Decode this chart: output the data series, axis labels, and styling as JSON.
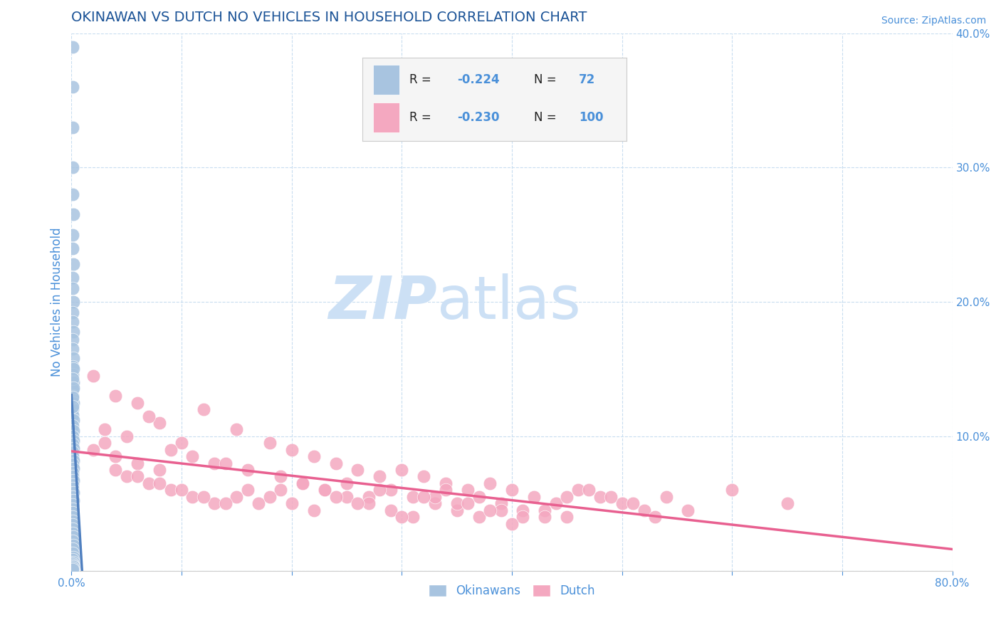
{
  "title": "OKINAWAN VS DUTCH NO VEHICLES IN HOUSEHOLD CORRELATION CHART",
  "source": "Source: ZipAtlas.com",
  "ylabel": "No Vehicles in Household",
  "xlim": [
    0.0,
    0.8
  ],
  "ylim": [
    0.0,
    0.4
  ],
  "xticks": [
    0.0,
    0.1,
    0.2,
    0.3,
    0.4,
    0.5,
    0.6,
    0.7,
    0.8
  ],
  "xticklabels": [
    "0.0%",
    "",
    "",
    "",
    "",
    "",
    "",
    "",
    "80.0%"
  ],
  "yticks": [
    0.0,
    0.1,
    0.2,
    0.3,
    0.4
  ],
  "yticklabels": [
    "",
    "10.0%",
    "20.0%",
    "30.0%",
    "40.0%"
  ],
  "okinawan_color": "#a8c4e0",
  "okinawan_edge_color": "#7090c0",
  "dutch_color": "#f4a8c0",
  "dutch_edge_color": "#e070a0",
  "okinawan_line_color": "#5080c0",
  "dutch_line_color": "#e86090",
  "title_color": "#1a5296",
  "axis_label_color": "#4a90d9",
  "tick_color": "#4a90d9",
  "watermark_zip": "ZIP",
  "watermark_atlas": "atlas",
  "watermark_color": "#cce0f5",
  "grid_color": "#c8ddf0",
  "background_color": "#ffffff",
  "legend_box_color": "#f5f5f5",
  "legend_border_color": "#cccccc",
  "okinawan_points_x": [
    0.001,
    0.001,
    0.001,
    0.001,
    0.001,
    0.002,
    0.001,
    0.001,
    0.002,
    0.001,
    0.001,
    0.002,
    0.001,
    0.001,
    0.002,
    0.001,
    0.001,
    0.002,
    0.001,
    0.001,
    0.002,
    0.001,
    0.001,
    0.002,
    0.001,
    0.001,
    0.002,
    0.001,
    0.002,
    0.001,
    0.002,
    0.001,
    0.002,
    0.001,
    0.001,
    0.002,
    0.001,
    0.002,
    0.001,
    0.001,
    0.002,
    0.001,
    0.001,
    0.002,
    0.001,
    0.002,
    0.001,
    0.001,
    0.001,
    0.001,
    0.001,
    0.001,
    0.001,
    0.001,
    0.002,
    0.001,
    0.002,
    0.001,
    0.001,
    0.002,
    0.001,
    0.002,
    0.001,
    0.001,
    0.002,
    0.001,
    0.001,
    0.002,
    0.001,
    0.002,
    0.001,
    0.001
  ],
  "okinawan_points_y": [
    0.39,
    0.36,
    0.33,
    0.3,
    0.28,
    0.265,
    0.25,
    0.24,
    0.228,
    0.218,
    0.21,
    0.2,
    0.192,
    0.185,
    0.178,
    0.172,
    0.165,
    0.158,
    0.152,
    0.146,
    0.14,
    0.135,
    0.13,
    0.125,
    0.12,
    0.116,
    0.112,
    0.108,
    0.104,
    0.1,
    0.097,
    0.094,
    0.091,
    0.088,
    0.085,
    0.082,
    0.079,
    0.076,
    0.073,
    0.07,
    0.067,
    0.064,
    0.061,
    0.058,
    0.055,
    0.052,
    0.049,
    0.046,
    0.043,
    0.04,
    0.037,
    0.034,
    0.031,
    0.028,
    0.025,
    0.022,
    0.019,
    0.016,
    0.013,
    0.01,
    0.008,
    0.006,
    0.005,
    0.004,
    0.003,
    0.002,
    0.001,
    0.15,
    0.143,
    0.136,
    0.129,
    0.122
  ],
  "dutch_points_x": [
    0.02,
    0.04,
    0.03,
    0.06,
    0.08,
    0.05,
    0.07,
    0.1,
    0.02,
    0.09,
    0.04,
    0.12,
    0.06,
    0.11,
    0.03,
    0.15,
    0.08,
    0.13,
    0.05,
    0.18,
    0.07,
    0.14,
    0.04,
    0.2,
    0.09,
    0.16,
    0.06,
    0.22,
    0.11,
    0.19,
    0.08,
    0.24,
    0.13,
    0.21,
    0.1,
    0.26,
    0.15,
    0.23,
    0.12,
    0.28,
    0.17,
    0.25,
    0.14,
    0.3,
    0.19,
    0.27,
    0.16,
    0.32,
    0.21,
    0.29,
    0.18,
    0.34,
    0.23,
    0.31,
    0.2,
    0.36,
    0.25,
    0.33,
    0.22,
    0.38,
    0.27,
    0.35,
    0.24,
    0.4,
    0.29,
    0.37,
    0.26,
    0.42,
    0.31,
    0.39,
    0.28,
    0.44,
    0.33,
    0.41,
    0.3,
    0.46,
    0.35,
    0.43,
    0.32,
    0.48,
    0.37,
    0.45,
    0.34,
    0.5,
    0.39,
    0.47,
    0.36,
    0.52,
    0.41,
    0.49,
    0.38,
    0.54,
    0.43,
    0.51,
    0.4,
    0.56,
    0.45,
    0.53,
    0.6,
    0.65
  ],
  "dutch_points_y": [
    0.145,
    0.13,
    0.105,
    0.125,
    0.11,
    0.1,
    0.115,
    0.095,
    0.09,
    0.09,
    0.085,
    0.12,
    0.08,
    0.085,
    0.095,
    0.105,
    0.075,
    0.08,
    0.07,
    0.095,
    0.065,
    0.08,
    0.075,
    0.09,
    0.06,
    0.075,
    0.07,
    0.085,
    0.055,
    0.07,
    0.065,
    0.08,
    0.05,
    0.065,
    0.06,
    0.075,
    0.055,
    0.06,
    0.055,
    0.07,
    0.05,
    0.065,
    0.05,
    0.075,
    0.06,
    0.055,
    0.06,
    0.07,
    0.065,
    0.06,
    0.055,
    0.065,
    0.06,
    0.055,
    0.05,
    0.06,
    0.055,
    0.05,
    0.045,
    0.065,
    0.05,
    0.045,
    0.055,
    0.06,
    0.045,
    0.055,
    0.05,
    0.055,
    0.04,
    0.05,
    0.06,
    0.05,
    0.055,
    0.045,
    0.04,
    0.06,
    0.05,
    0.045,
    0.055,
    0.055,
    0.04,
    0.04,
    0.06,
    0.05,
    0.045,
    0.06,
    0.05,
    0.045,
    0.04,
    0.055,
    0.045,
    0.055,
    0.04,
    0.05,
    0.035,
    0.045,
    0.055,
    0.04,
    0.06,
    0.05
  ]
}
